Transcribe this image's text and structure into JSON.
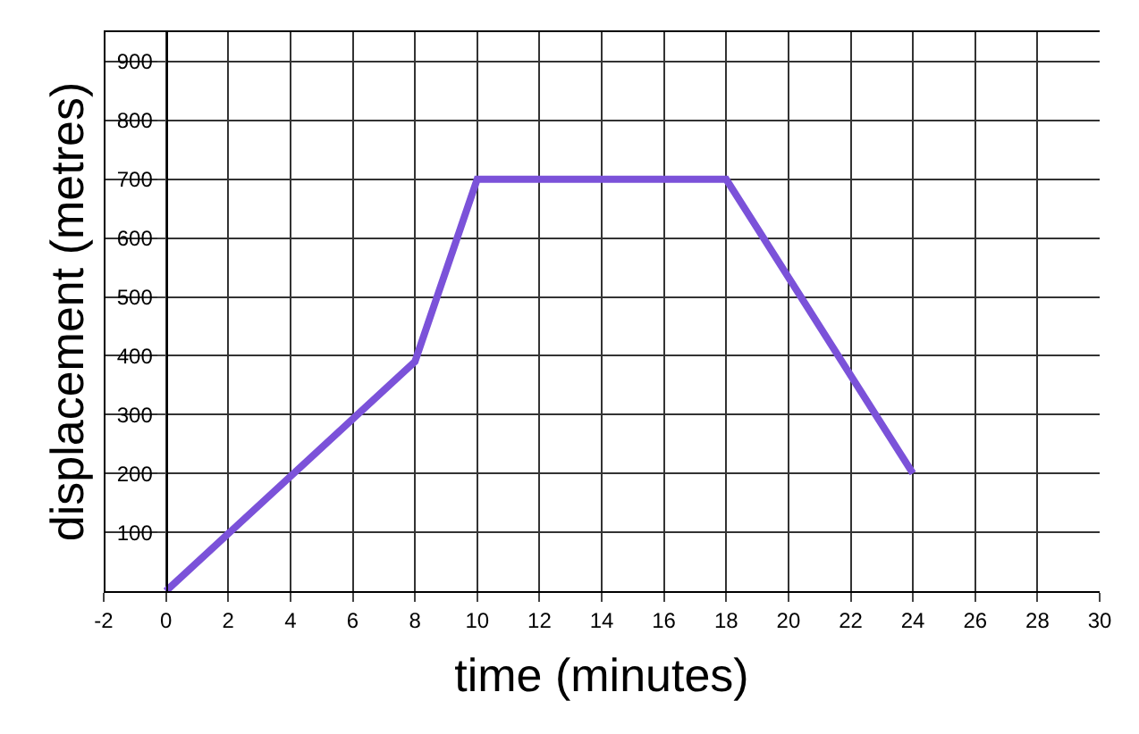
{
  "chart_data": {
    "type": "line",
    "xlabel": "time (minutes)",
    "ylabel": "displacement (metres)",
    "x": [
      0,
      8,
      10,
      18,
      24
    ],
    "series": [
      {
        "color": "#7b52d9",
        "values": [
          0,
          390,
          700,
          700,
          200
        ]
      }
    ],
    "xlim": [
      -2,
      30
    ],
    "xticks": [
      -2,
      0,
      2,
      4,
      6,
      8,
      10,
      12,
      14,
      16,
      18,
      20,
      22,
      24,
      26,
      28,
      30
    ],
    "ylim": [
      0,
      950
    ],
    "yticks": [
      100,
      200,
      300,
      400,
      500,
      600,
      700,
      800,
      900
    ],
    "grid": true,
    "marker": "none",
    "line_style": "solid"
  }
}
